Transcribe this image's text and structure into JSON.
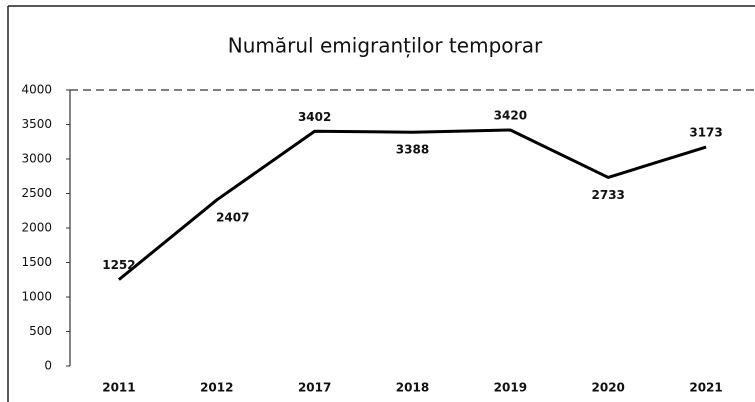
{
  "chart_data": {
    "type": "line",
    "title": "Numărul emigranților temporar",
    "categories": [
      "2011",
      "2012",
      "2017",
      "2018",
      "2019",
      "2020",
      "2021"
    ],
    "values": [
      1252,
      2407,
      3402,
      3388,
      3420,
      2733,
      3173
    ],
    "color": "#000000",
    "ylim": [
      0,
      4000
    ],
    "yticks": [
      0,
      500,
      1000,
      1500,
      2000,
      2500,
      3000,
      3500,
      4000
    ],
    "grid": false
  }
}
